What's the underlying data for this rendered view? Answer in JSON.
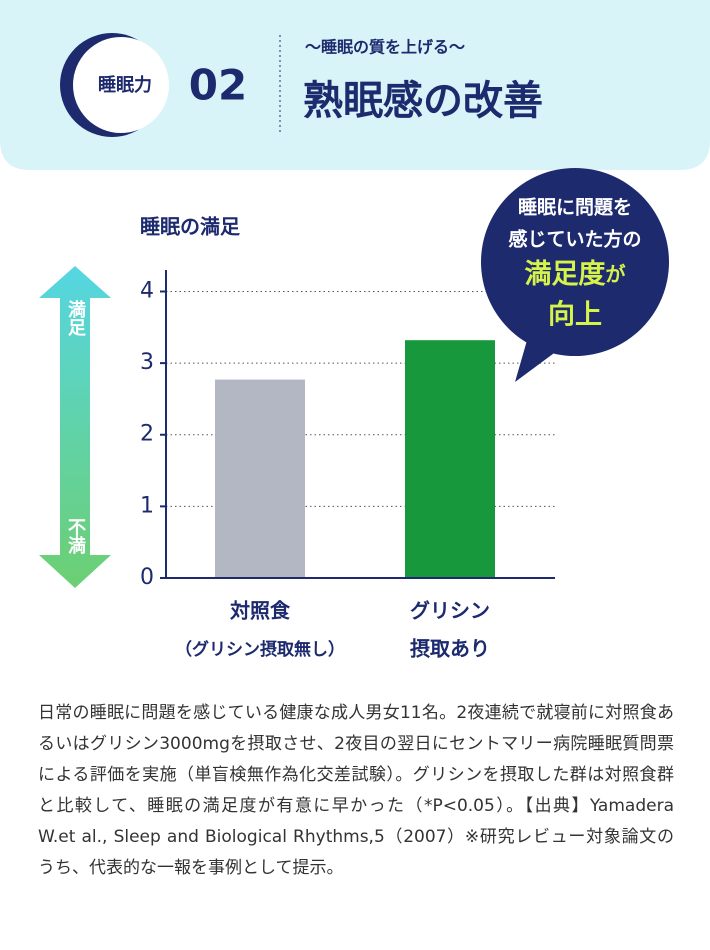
{
  "header": {
    "badge": "睡眠力",
    "number": "02",
    "subtitle": "〜睡眠の質を上げる〜",
    "title": "熟眠感の改善"
  },
  "chart_data": {
    "type": "bar",
    "y_label": "睡眠の満足",
    "categories": [
      [
        "対照食",
        "（グリシン摂取無し）"
      ],
      [
        "グリシン",
        "摂取あり"
      ]
    ],
    "values": [
      2.77,
      3.32
    ],
    "colors": [
      "#b3b7c3",
      "#18983c"
    ],
    "ylim": [
      0,
      4.3
    ],
    "yticks": [
      0,
      1,
      2,
      3,
      4
    ],
    "grid": true
  },
  "scale": {
    "top": "満足",
    "bottom": "不満"
  },
  "callout": {
    "lines": [
      "睡眠に問題を",
      "感じていた方の"
    ],
    "highlight": "満足度",
    "particle": "が",
    "result": "向上"
  },
  "footnote": "日常の睡眠に問題を感じている健康な成人男女11名。2夜連続で就寝前に対照食あるいはグリシン3000mgを摂取させ、2夜目の翌日にセントマリー病院睡眠質問票による評価を実施（単盲検無作為化交差試験）。グリシンを摂取した群は対照食群と比較して、睡眠の満足度が有意に早かった（*P<0.05）。【出典】Yamadera W.et al., Sleep and Biological Rhythms,5（2007）※研究レビュー対象論文のうち、代表的な一報を事例として提示。"
}
